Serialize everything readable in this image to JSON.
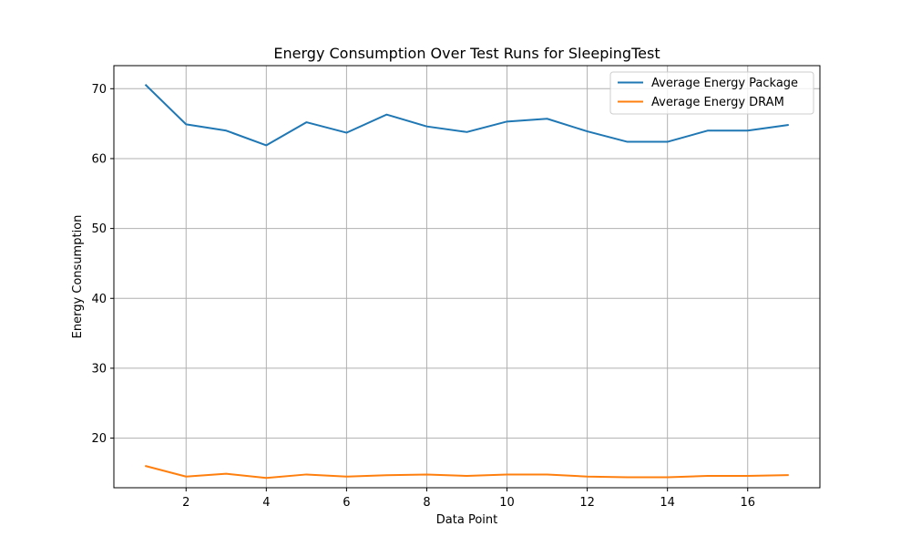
{
  "chart_data": {
    "type": "line",
    "title": "Energy Consumption Over Test Runs for SleepingTest",
    "xlabel": "Data Point",
    "ylabel": "Energy Consumption",
    "xlim": [
      0.2,
      17.8
    ],
    "ylim": [
      12.9,
      73.3
    ],
    "xticks": [
      2,
      4,
      6,
      8,
      10,
      12,
      14,
      16
    ],
    "yticks": [
      20,
      30,
      40,
      50,
      60,
      70
    ],
    "grid": true,
    "legend_position": "top-right",
    "x": [
      1,
      2,
      3,
      4,
      5,
      6,
      7,
      8,
      9,
      10,
      11,
      12,
      13,
      14,
      15,
      16,
      17
    ],
    "series": [
      {
        "name": "Average Energy Package",
        "color": "#1f77b4",
        "values": [
          70.5,
          64.9,
          64.0,
          61.9,
          65.2,
          63.7,
          66.3,
          64.6,
          63.8,
          65.3,
          65.7,
          63.9,
          62.4,
          62.4,
          64.0,
          64.0,
          64.8
        ]
      },
      {
        "name": "Average Energy DRAM",
        "color": "#ff7f0e",
        "values": [
          16.0,
          14.5,
          14.9,
          14.3,
          14.8,
          14.5,
          14.7,
          14.8,
          14.6,
          14.8,
          14.8,
          14.5,
          14.4,
          14.4,
          14.6,
          14.6,
          14.7
        ]
      }
    ]
  }
}
